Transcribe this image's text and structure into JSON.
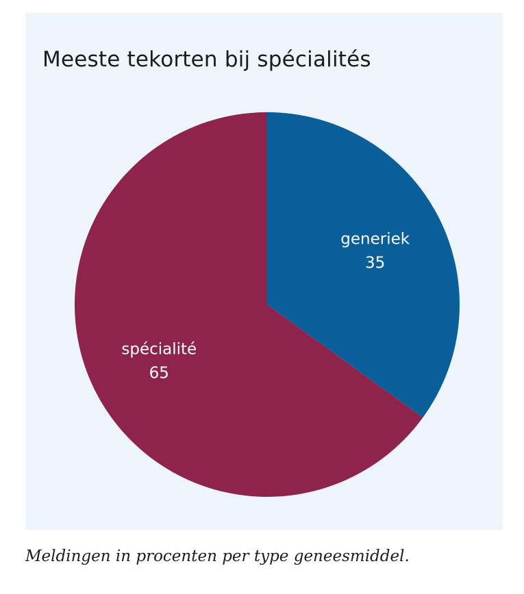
{
  "chart_data": {
    "type": "pie",
    "title": "Meeste tekorten bij spécialités",
    "slices": [
      {
        "label": "generiek",
        "value": 35,
        "color": "#0a5f9b"
      },
      {
        "label": "spécialité",
        "value": 65,
        "color": "#8e244c"
      }
    ],
    "legend": "none",
    "start_angle": "12 o'clock",
    "direction": "clockwise"
  },
  "caption": "Meldingen in procenten per type geneesmiddel.",
  "colors": {
    "panel_background": "#eef4fc",
    "text": "#1c1c1c",
    "slice_label": "#ffffff"
  }
}
